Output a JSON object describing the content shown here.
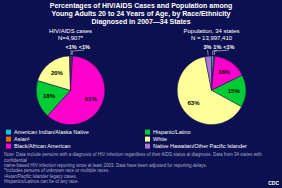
{
  "chart_data": [
    {
      "type": "pie",
      "title": "Percentages of HIV/AIDS Cases and Population among\nYoung Adults 20 to 24 Years of Age, by Race/Ethnicity\nDiagnosed in 2007—34 States",
      "subtitle": "HIV/AIDS cases\nN=4,907*",
      "categories": [
        "American Indian/Alaska Native",
        "Asian¹",
        "Black/African American",
        "Hispanic/Latino",
        "White",
        "Native Hawaiian/Other Pacific Islander"
      ],
      "values": [
        0.5,
        0.5,
        61,
        18,
        20,
        0.5
      ],
      "value_labels": [
        "<1%",
        "<1%",
        "61%",
        "18%",
        "20%",
        null
      ],
      "colors": [
        "#00c8d7",
        "#ff6600",
        "#ff00cc",
        "#00cc33",
        "#ffff99",
        "#aa77cc"
      ],
      "data_labels": true,
      "legend": "bottom",
      "annotations": [
        "Note: Data include persons with a diagnosis of HIV infection regardless of their AIDS status at diagnosis. Data from 34 states with confidential\nname-based HIV infection reporting since at least 2003. Data have been adjusted for reporting delays.\n*Includes persons of unknown race or multiple races.\n¹Asian/Pacific Islander legacy cases.\nHispanics/Latinos can be of any race.",
        "CDC"
      ]
    },
    {
      "type": "pie",
      "subtitle": "Population, 34 states\nN = 13,997,410",
      "values": [
        1,
        0.5,
        16,
        15,
        63,
        3
      ],
      "value_labels": [
        "1%",
        "<1%",
        "16%",
        "15%",
        "63%",
        "3%"
      ],
      "colors": [
        "#00c8d7",
        "#ff6600",
        "#ff00cc",
        "#00cc33",
        "#ffff99",
        "#aa77cc"
      ],
      "data_labels": true
    }
  ]
}
